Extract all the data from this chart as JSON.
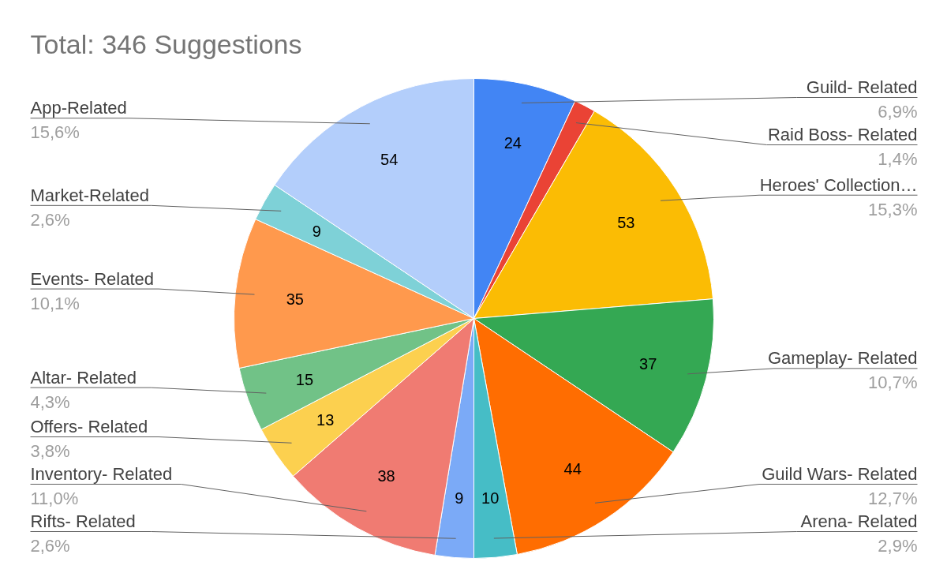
{
  "chart_data": {
    "type": "pie",
    "title": "Total: 346 Suggestions",
    "categories": [
      "Guild- Related",
      "Raid Boss- Related",
      "Heroes' Collection…",
      "Gameplay- Related",
      "Guild Wars- Related",
      "Arena- Related",
      "Rifts- Related",
      "Inventory- Related",
      "Offers- Related",
      "Altar- Related",
      "Events- Related",
      "Market-Related",
      "App-Related"
    ],
    "values": [
      24,
      5,
      53,
      37,
      44,
      10,
      9,
      38,
      13,
      15,
      35,
      9,
      54
    ],
    "colors": [
      "#4285f4",
      "#ea4335",
      "#fbbc04",
      "#34a853",
      "#ff6d01",
      "#46bdc6",
      "#7baaf7",
      "#f07b72",
      "#fcd04f",
      "#71c287",
      "#ff994d",
      "#7ed1d7",
      "#b3cefb"
    ],
    "value_labels": [
      "24",
      null,
      "53",
      "37",
      "44",
      "10",
      "9",
      "38",
      "13",
      "15",
      "35",
      "9",
      "54"
    ],
    "annotations": [
      "6,9%",
      "1,4%",
      "15,3%",
      "10,7%",
      "12,7%",
      "2,9%",
      "2,6%",
      "11,0%",
      "3,8%",
      "4,3%",
      "10,1%",
      "2,6%",
      "15,6%"
    ]
  }
}
